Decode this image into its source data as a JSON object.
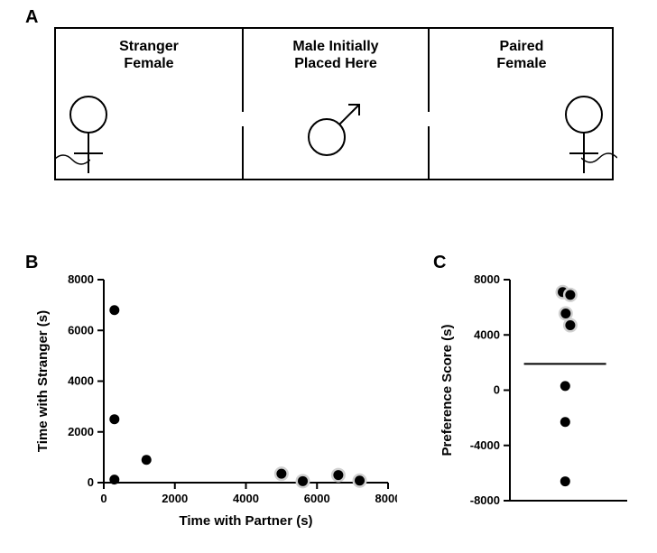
{
  "panelA": {
    "label": "A",
    "chambers": {
      "left": {
        "line1": "Stranger",
        "line2": "Female"
      },
      "center": {
        "line1": "Male Initially",
        "line2": "Placed Here"
      },
      "right": {
        "line1": "Paired",
        "line2": "Female"
      }
    }
  },
  "panelB": {
    "label": "B",
    "type": "scatter",
    "xlabel": "Time with Partner (s)",
    "ylabel": "Time with Stranger (s)",
    "xlim": [
      0,
      8000
    ],
    "ylim": [
      0,
      8000
    ],
    "tick_step": 2000,
    "ticks": [
      0,
      2000,
      4000,
      6000,
      8000
    ],
    "point_color": "#000000",
    "halo_color": "#d0d0d0",
    "background_color": "#ffffff",
    "marker_radius": 5.5,
    "points_plain": [
      {
        "x": 300,
        "y": 6800
      },
      {
        "x": 300,
        "y": 2500
      },
      {
        "x": 300,
        "y": 120
      },
      {
        "x": 1200,
        "y": 900
      }
    ],
    "points_halo": [
      {
        "x": 5000,
        "y": 350
      },
      {
        "x": 5600,
        "y": 60
      },
      {
        "x": 6600,
        "y": 300
      },
      {
        "x": 7200,
        "y": 80
      }
    ]
  },
  "panelC": {
    "label": "C",
    "type": "strip",
    "ylabel": "Preference Score (s)",
    "ylim": [
      -8000,
      8000
    ],
    "tick_step": 4000,
    "ticks": [
      -8000,
      -4000,
      0,
      4000,
      8000
    ],
    "point_color": "#000000",
    "halo_color": "#d0d0d0",
    "background_color": "#ffffff",
    "marker_radius": 5.5,
    "mean_line_y": 1900,
    "points_halo": [
      {
        "jx": 0.0,
        "y": 7100
      },
      {
        "jx": 0.3,
        "y": 6900
      },
      {
        "jx": 0.12,
        "y": 5550
      },
      {
        "jx": 0.3,
        "y": 4700
      }
    ],
    "points_plain": [
      {
        "jx": 0.1,
        "y": 300
      },
      {
        "jx": 0.1,
        "y": -2300
      },
      {
        "jx": 0.1,
        "y": -6600
      }
    ]
  },
  "style": {
    "label_fontsize": 20,
    "axis_title_fontsize": 15,
    "tick_fontsize": 13,
    "line_color": "#000000",
    "line_width": 2
  }
}
